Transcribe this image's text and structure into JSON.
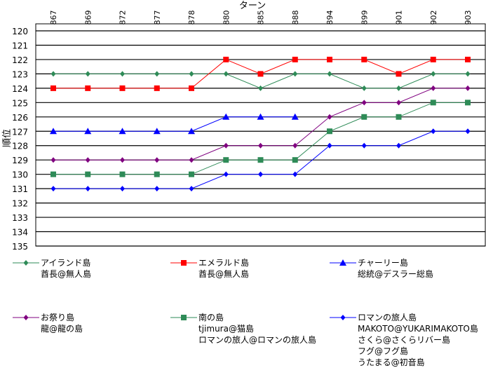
{
  "chart_data": {
    "type": "line",
    "title": "",
    "xlabel": "ターン",
    "ylabel": "順位",
    "ylim": [
      120,
      135
    ],
    "y_reversed": true,
    "grid": true,
    "legend_position": "bottom",
    "categories": [
      "867",
      "869",
      "872",
      "877",
      "878",
      "880",
      "885",
      "888",
      "894",
      "899",
      "901",
      "902",
      "903"
    ],
    "yticks": [
      120,
      121,
      122,
      123,
      124,
      125,
      126,
      127,
      128,
      129,
      130,
      131,
      132,
      133,
      134,
      135
    ],
    "series": [
      {
        "name": "アイランド島",
        "members": [
          "酋長@無人島"
        ],
        "color": "#2e8b57",
        "marker": "diamond",
        "values": [
          123,
          123,
          123,
          123,
          123,
          123,
          124,
          123,
          123,
          124,
          124,
          123,
          123
        ]
      },
      {
        "name": "エメラルド島",
        "members": [
          "酋長@無人島"
        ],
        "color": "#ff0000",
        "marker": "square",
        "values": [
          124,
          124,
          124,
          124,
          124,
          122,
          123,
          122,
          122,
          122,
          123,
          122,
          122
        ]
      },
      {
        "name": "チャーリー島",
        "members": [
          "総統@デスラー総島"
        ],
        "color": "#0000ff",
        "marker": "triangle",
        "values": [
          127,
          127,
          127,
          127,
          127,
          126,
          126,
          126,
          null,
          null,
          null,
          null,
          null
        ]
      },
      {
        "name": "お祭り島",
        "members": [
          "龍@龍の島"
        ],
        "color": "#800080",
        "marker": "diamond",
        "values": [
          129,
          129,
          129,
          129,
          129,
          128,
          128,
          128,
          126,
          125,
          125,
          124,
          124
        ]
      },
      {
        "name": "南の島",
        "members": [
          "tjimura@猫島",
          "ロマンの旅人@ロマンの旅人島"
        ],
        "color": "#2e8b57",
        "marker": "square",
        "values": [
          130,
          130,
          130,
          130,
          130,
          129,
          129,
          129,
          127,
          126,
          126,
          125,
          125
        ]
      },
      {
        "name": "ロマンの旅人島",
        "members": [
          "MAKOTO@YUKARIMAKOTO島",
          "さくら@さくらリバー島",
          "フグ@フグ島",
          "うたまる@初音島"
        ],
        "color": "#0000ff",
        "marker": "diamond",
        "values": [
          131,
          131,
          131,
          131,
          131,
          130,
          130,
          130,
          128,
          128,
          128,
          127,
          127
        ]
      }
    ]
  }
}
